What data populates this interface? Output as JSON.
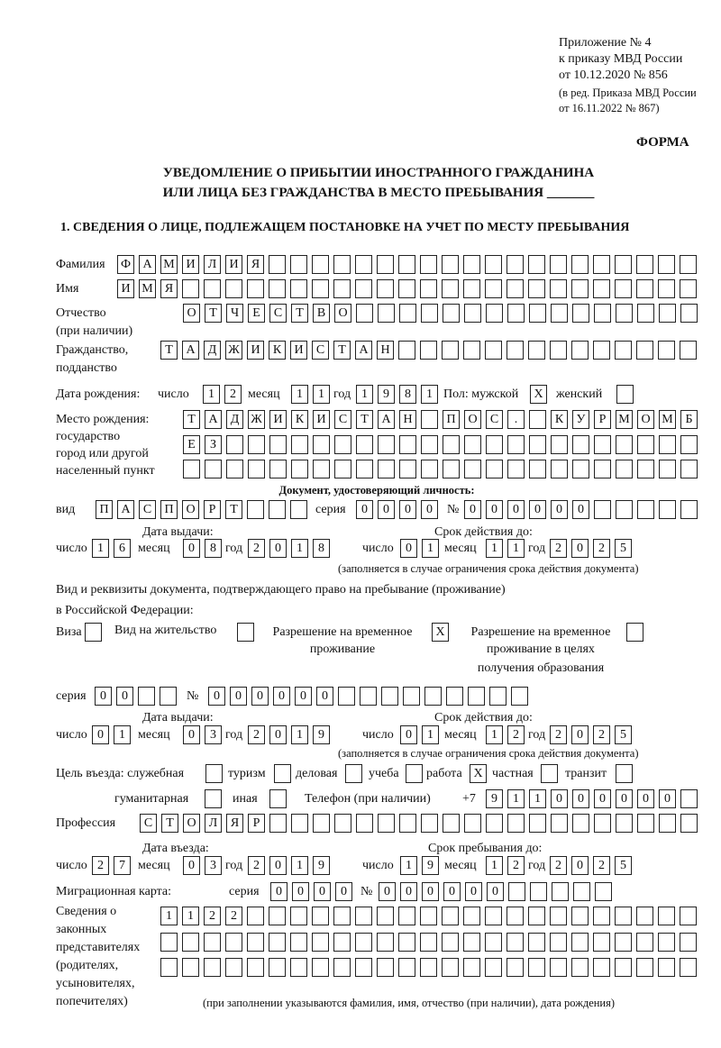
{
  "header": {
    "appendix": "Приложение № 4",
    "order": "к приказу МВД России",
    "order_date": "от 10.12.2020 № 856",
    "edition1": "(в ред. Приказа МВД России",
    "edition2": "от 16.11.2022 № 867)",
    "form_label": "ФОРМА",
    "title1": "УВЕДОМЛЕНИЕ О ПРИБЫТИИ ИНОСТРАННОГО ГРАЖДАНИНА",
    "title2": "ИЛИ ЛИЦА БЕЗ ГРАЖДАНСТВА В МЕСТО ПРЕБЫВАНИЯ _______",
    "section1": "1. СВЕДЕНИЯ О ЛИЦЕ, ПОДЛЕЖАЩЕМ ПОСТАНОВКЕ НА УЧЕТ ПО МЕСТУ ПРЕБЫВАНИЯ"
  },
  "labels": {
    "surname": "Фамилия",
    "name": "Имя",
    "patronymic1": "Отчество",
    "patronymic2": "(при наличии)",
    "citizenship1": "Гражданство,",
    "citizenship2": "подданство",
    "birth_date": "Дата рождения:",
    "day": "число",
    "month": "месяц",
    "year": "год",
    "sex": "Пол: мужской",
    "female": "женский",
    "birth_place1": "Место рождения:",
    "birth_place2": "государство",
    "birth_place3": "город или другой",
    "birth_place4": "населенный пункт",
    "id_doc": "Документ, удостоверяющий личность:",
    "kind": "вид",
    "series": "серия",
    "number": "№",
    "issue_date": "Дата выдачи:",
    "valid_until": "Срок действия до:",
    "valid_note": "(заполняется в случае ограничения срока действия документа)",
    "right_doc1": "Вид и реквизиты документа, подтверждающего право на пребывание (проживание)",
    "right_doc2": "в Российской Федерации:",
    "visa": "Виза",
    "residence": "Вид на жительство",
    "temp_permit1": "Разрешение на временное",
    "temp_permit2": "проживание",
    "temp_edu1": "Разрешение на временное",
    "temp_edu2": "проживание в целях",
    "temp_edu3": "получения образования",
    "purpose": "Цель въезда: служебная",
    "tourism": "туризм",
    "business": "деловая",
    "study": "учеба",
    "work": "работа",
    "private": "частная",
    "transit": "транзит",
    "humanitarian": "гуманитарная",
    "other": "иная",
    "phone": "Телефон (при наличии)",
    "phone_prefix": "+7",
    "profession": "Профессия",
    "entry_date": "Дата въезда:",
    "stay_until": "Срок пребывания до:",
    "migration_card": "Миграционная карта:",
    "reps1": "Сведения о",
    "reps2": "законных",
    "reps3": "представителях",
    "reps4": "(родителях,",
    "reps5": "усыновителях,",
    "reps6": "попечителях)",
    "reps_note": "(при заполнении указываются фамилия, имя, отчество (при наличии), дата рождения)"
  },
  "values": {
    "surname": "ФАМИЛИЯ",
    "name": "ИМЯ",
    "patronymic": "ОТЧЕСТВО",
    "citizenship": "ТАДЖИКИСТАН",
    "birth_day": "12",
    "birth_month": "11",
    "birth_year": "1981",
    "sex_male": "X",
    "sex_female": "",
    "birth_place_1": "ТАДЖИКИСТАН ПОС. КУРМОМБ",
    "birth_place_2": "ЕЗ",
    "birth_place_3": "",
    "id_kind": "ПАСПОРТ",
    "id_series": "0000",
    "id_number": "000000",
    "id_issue_day": "16",
    "id_issue_month": "08",
    "id_issue_year": "2018",
    "id_valid_day": "01",
    "id_valid_month": "11",
    "id_valid_year": "2025",
    "visa": "",
    "residence": "",
    "temp_permit": "X",
    "temp_edu": "",
    "right_series": "00",
    "right_number": "000000",
    "right_issue_day": "01",
    "right_issue_month": "03",
    "right_issue_year": "2019",
    "right_valid_day": "01",
    "right_valid_month": "12",
    "right_valid_year": "2025",
    "p_service": "",
    "p_tourism": "",
    "p_business": "",
    "p_study": "",
    "p_work": "X",
    "p_private": "",
    "p_transit": "",
    "p_humanitarian": "",
    "p_other": "",
    "phone": "911000000",
    "profession": "СТОЛЯР",
    "entry_day": "27",
    "entry_month": "03",
    "entry_year": "2019",
    "stay_day": "19",
    "stay_month": "12",
    "stay_year": "2025",
    "mc_series": "0000",
    "mc_number": "000000",
    "reps_1": "1122",
    "reps_2": "",
    "reps_3": ""
  }
}
